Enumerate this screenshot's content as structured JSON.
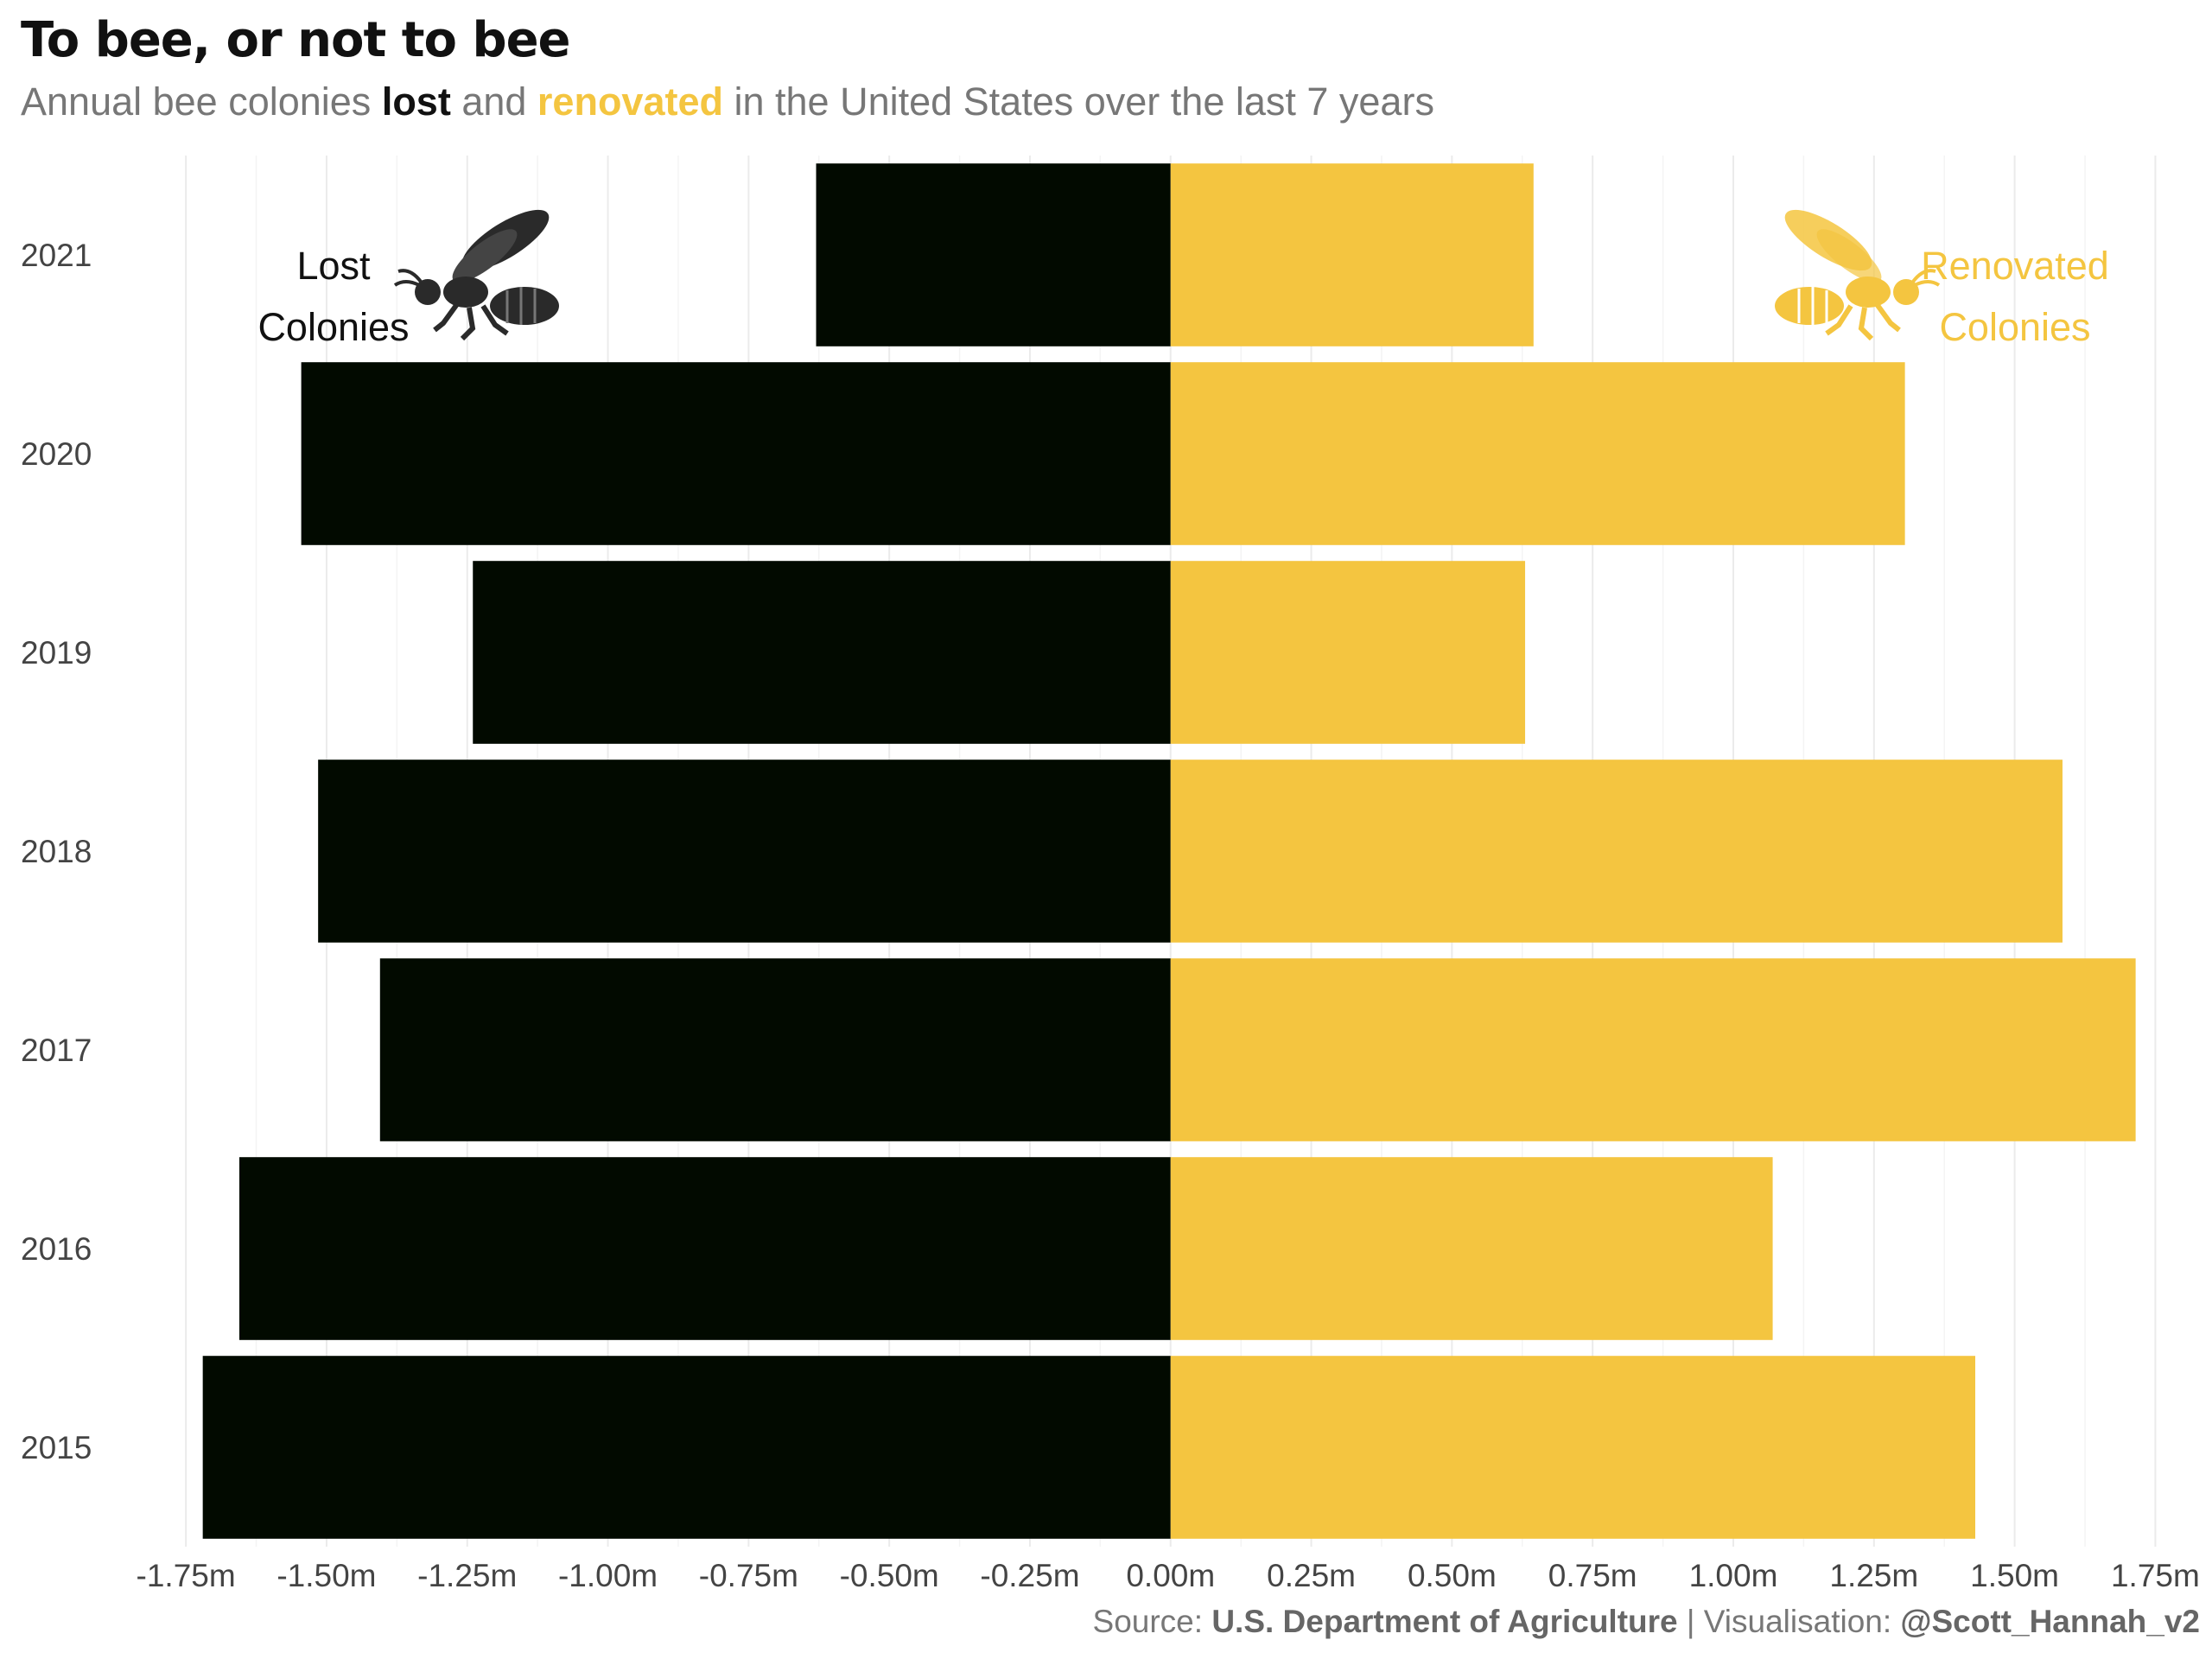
{
  "title": "To bee, or not to bee",
  "subtitle": {
    "prefix": "Annual bee colonies ",
    "lost": "lost",
    "and": " and ",
    "renovated": "renovated",
    "suffix": " in the United States over the last 7 years"
  },
  "caption": {
    "source_label": "Source: ",
    "source": "U.S. Department of Agriculture",
    "sep": " | Visualisation: ",
    "author": "@Scott_Hannah_v2"
  },
  "legend": {
    "lost_line1": "Lost",
    "lost_line2": "Colonies",
    "renovated_line1": "Renovated",
    "renovated_line2": "Colonies",
    "lost_icon": "bee-icon",
    "renovated_icon": "bee-icon"
  },
  "colors": {
    "lost": "#020A00",
    "renovated": "#F4C540",
    "grid": "#EBEBEB",
    "text": "#444444"
  },
  "chart_data": {
    "type": "bar",
    "orientation": "horizontal-diverging",
    "categories": [
      "2015",
      "2016",
      "2017",
      "2018",
      "2019",
      "2020",
      "2021"
    ],
    "series": [
      {
        "name": "lost",
        "values": [
          -1.72,
          -1.655,
          -1.405,
          -1.515,
          -1.24,
          -1.545,
          -0.63
        ]
      },
      {
        "name": "renovated",
        "values": [
          1.43,
          1.07,
          1.715,
          1.585,
          0.63,
          1.305,
          0.645
        ]
      }
    ],
    "xlim": [
      -1.85,
      1.82
    ],
    "ticks": [
      -1.75,
      -1.5,
      -1.25,
      -1.0,
      -0.75,
      -0.5,
      -0.25,
      0.0,
      0.25,
      0.5,
      0.75,
      1.0,
      1.25,
      1.5,
      1.75
    ],
    "tick_labels": [
      "-1.75m",
      "-1.50m",
      "-1.25m",
      "-1.00m",
      "-0.75m",
      "-0.50m",
      "-0.25m",
      "0.00m",
      "0.25m",
      "0.50m",
      "0.75m",
      "1.00m",
      "1.25m",
      "1.50m",
      "1.75m"
    ],
    "grid": true
  }
}
